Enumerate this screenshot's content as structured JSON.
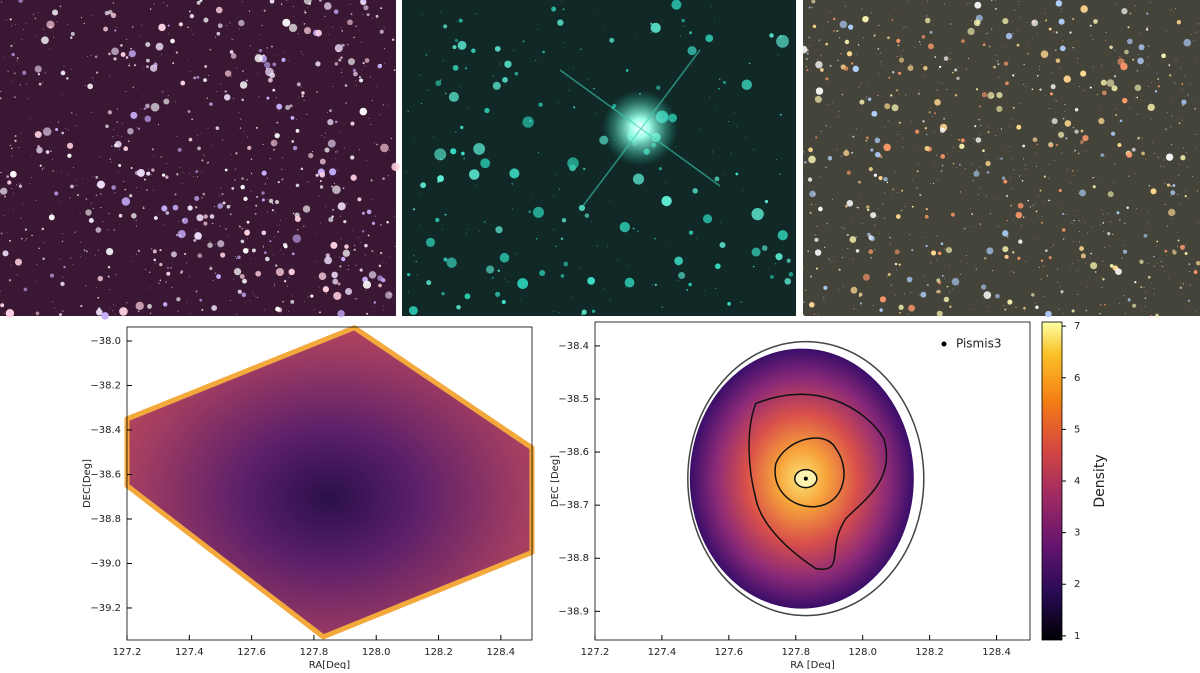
{
  "chart_data": [
    {
      "type": "heatmap",
      "x_label": "RA[Deg]",
      "y_label": "DEC[Deg]",
      "xlim": [
        127.2,
        128.5
      ],
      "ylim": [
        -39.344,
        -37.937
      ],
      "xticks": [
        127.2,
        127.4,
        127.6,
        127.8,
        {
          "value": 128.0,
          "label": "128.0"
        },
        128.2,
        128.4
      ],
      "yticks": [
        {
          "value": -39.2,
          "label": "−39.2"
        },
        {
          "value": -39.0,
          "label": "−39.0"
        },
        {
          "value": -38.8,
          "label": "−38.8"
        },
        {
          "value": -38.6,
          "label": "−38.6"
        },
        {
          "value": -38.4,
          "label": "−38.4"
        },
        {
          "value": -38.2,
          "label": "−38.2"
        },
        {
          "value": -38.0,
          "label": "−38.0"
        }
      ]
    },
    {
      "type": "scatter",
      "x_label": "RA [Deg]",
      "y_label": "DEC [Deg]",
      "xlim": [
        127.2,
        128.5
      ],
      "ylim": [
        -38.954,
        -38.355
      ],
      "xticks": [
        127.2,
        127.4,
        127.6,
        127.8,
        {
          "value": 128.0,
          "label": "128.0"
        },
        128.2,
        128.4
      ],
      "yticks": [
        {
          "value": -38.9,
          "label": "−38.9"
        },
        {
          "value": -38.8,
          "label": "−38.8"
        },
        {
          "value": -38.7,
          "label": "−38.7"
        },
        {
          "value": -38.6,
          "label": "−38.6"
        },
        {
          "value": -38.5,
          "label": "−38.5"
        },
        {
          "value": -38.4,
          "label": "−38.4"
        }
      ],
      "series": [
        {
          "name": "Pismis3",
          "color": "#000000",
          "x": [
            127.83
          ],
          "y": [
            -38.65
          ]
        }
      ],
      "legend": "upper right",
      "colorbar": {
        "label": "Density",
        "lim": [
          0.92,
          7.08
        ],
        "ticks": [
          1,
          2,
          3,
          4,
          5,
          6,
          7
        ]
      }
    }
  ]
}
